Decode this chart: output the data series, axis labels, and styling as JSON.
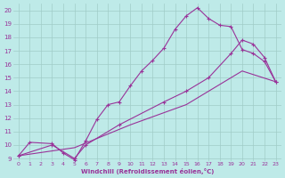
{
  "xlabel": "Windchill (Refroidissement éolien,°C)",
  "xlim": [
    -0.5,
    23.5
  ],
  "ylim": [
    8.8,
    20.5
  ],
  "yticks": [
    9,
    10,
    11,
    12,
    13,
    14,
    15,
    16,
    17,
    18,
    19,
    20
  ],
  "xticks": [
    0,
    1,
    2,
    3,
    4,
    5,
    6,
    7,
    8,
    9,
    10,
    11,
    12,
    13,
    14,
    15,
    16,
    17,
    18,
    19,
    20,
    21,
    22,
    23
  ],
  "bg_color": "#beeae8",
  "line_color": "#993399",
  "grid_color": "#a0ccc8",
  "curve1_x": [
    0,
    1,
    3,
    4,
    5,
    6,
    7,
    8,
    9,
    10,
    11,
    12,
    13,
    14,
    15,
    16,
    17,
    18,
    19,
    20,
    21,
    22,
    23
  ],
  "curve1_y": [
    9.2,
    10.2,
    10.1,
    9.4,
    8.9,
    10.3,
    11.9,
    13.0,
    13.2,
    14.4,
    15.5,
    16.3,
    17.2,
    18.6,
    19.6,
    20.2,
    19.4,
    18.9,
    18.8,
    17.1,
    16.8,
    16.2,
    14.7
  ],
  "curve2_x": [
    0,
    3,
    5,
    6,
    9,
    13,
    15,
    17,
    19,
    20,
    21,
    22,
    23
  ],
  "curve2_y": [
    9.2,
    10.0,
    9.0,
    10.0,
    11.5,
    13.2,
    14.0,
    15.0,
    16.8,
    17.8,
    17.5,
    16.5,
    14.7
  ],
  "curve3_x": [
    0,
    5,
    10,
    15,
    20,
    23
  ],
  "curve3_y": [
    9.2,
    9.8,
    11.5,
    13.0,
    15.5,
    14.7
  ],
  "marker": "+"
}
